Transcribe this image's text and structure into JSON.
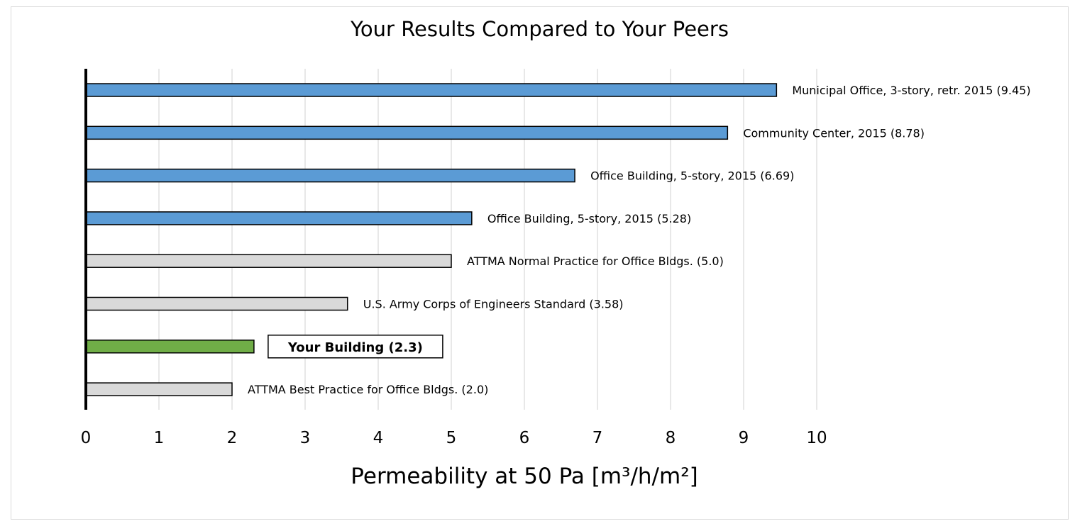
{
  "chart_data": {
    "type": "bar",
    "orientation": "horizontal",
    "title": "Your Results Compared to Your Peers",
    "xlabel": "Permeability at 50 Pa [m³/h/m²]",
    "ylabel": "",
    "xlim": [
      0,
      10
    ],
    "xticks": [
      0,
      1,
      2,
      3,
      4,
      5,
      6,
      7,
      8,
      9,
      10
    ],
    "grid": "vertical",
    "legend": "none",
    "bars": [
      {
        "label": "Municipal Office, 3-story, retr. 2015 (9.45)",
        "value": 9.45,
        "color": "#5b9bd5",
        "highlight": false
      },
      {
        "label": "Community Center, 2015 (8.78)",
        "value": 8.78,
        "color": "#5b9bd5",
        "highlight": false
      },
      {
        "label": "Office Building, 5-story, 2015 (6.69)",
        "value": 6.69,
        "color": "#5b9bd5",
        "highlight": false
      },
      {
        "label": "Office Building, 5-story, 2015 (5.28)",
        "value": 5.28,
        "color": "#5b9bd5",
        "highlight": false
      },
      {
        "label": "ATTMA Normal Practice for Office Bldgs. (5.0)",
        "value": 5.0,
        "color": "#d9d9d9",
        "highlight": false
      },
      {
        "label": "U.S. Army Corps of Engineers Standard (3.58)",
        "value": 3.58,
        "color": "#d9d9d9",
        "highlight": false
      },
      {
        "label": "Your Building (2.3)",
        "value": 2.3,
        "color": "#70ad47",
        "highlight": true
      },
      {
        "label": "ATTMA Best Practice for Office Bldgs. (2.0)",
        "value": 2.0,
        "color": "#d9d9d9",
        "highlight": false
      }
    ]
  }
}
